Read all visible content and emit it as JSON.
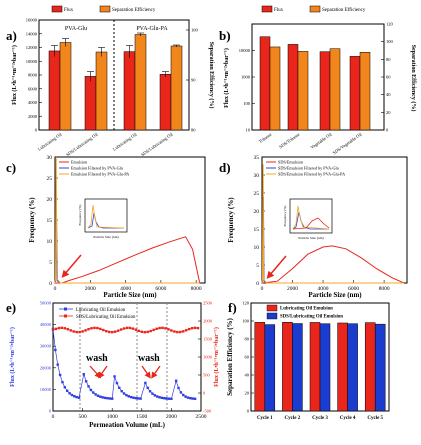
{
  "colors": {
    "flux": "#e8261c",
    "sep": "#f0861c",
    "blue": "#2f3fe0",
    "orange": "#f5a623",
    "pink": "#e53a8a",
    "bar_blue": "#1a3ccf"
  },
  "chart_data": [
    {
      "panel": "a)",
      "type": "bar",
      "legend": [
        "Flux",
        "Separation Efficiency"
      ],
      "groups": [
        "PVA-Glu",
        "PVA-Glu-PA"
      ],
      "categories": [
        "Lubricating Oil",
        "SDS/Lubricating Oil",
        "Lubricating Oil",
        "SDS/Lubricating Oil"
      ],
      "series": [
        {
          "name": "Flux",
          "values": [
            11500,
            7800,
            11400,
            8100
          ],
          "errors": [
            800,
            700,
            900,
            400
          ],
          "axis": "left"
        },
        {
          "name": "Separation Efficiency",
          "values": [
            97.5,
            95.6,
            99.1,
            96.8
          ],
          "errors": [
            0.8,
            0.9,
            0.3,
            0.2
          ],
          "axis": "right"
        }
      ],
      "ylabel": "Flux (L•h⁻¹•m⁻²•bar⁻¹)",
      "y2label": "Separation Efficiency (%)",
      "ylim": [
        0,
        16000
      ],
      "y2lim": [
        80,
        102
      ],
      "yticks": [
        "0",
        "2000",
        "4000",
        "6000",
        "8000",
        "10000",
        "12000",
        "14000",
        "16000"
      ],
      "y2ticks": [
        "80",
        "90",
        "100"
      ]
    },
    {
      "panel": "b)",
      "type": "bar",
      "legend": [
        "Flux",
        "Separation Efficiency"
      ],
      "categories": [
        "Toluene",
        "SDS/Toluene",
        "Vegetable Oil",
        "SDS/Vegetable Oil"
      ],
      "series": [
        {
          "name": "Flux",
          "values": [
            33000,
            17000,
            9000,
            6000
          ],
          "axis": "left"
        },
        {
          "name": "Separation Efficiency",
          "values": [
            94,
            89,
            92,
            88
          ],
          "axis": "right"
        }
      ],
      "ylabel": "Flux (L•h⁻¹•m⁻²•bar⁻¹)",
      "y2label": "Separation Efficiency (%)",
      "yscale": "log",
      "ylim": [
        10,
        100000
      ],
      "y2lim": [
        0,
        120
      ],
      "yticks": [
        "10",
        "100",
        "1000",
        "10000"
      ],
      "y2ticks": [
        "0",
        "20",
        "40",
        "60",
        "80",
        "100",
        "120"
      ]
    },
    {
      "panel": "c)",
      "type": "line",
      "series": [
        {
          "name": "Emulsion",
          "color": "#e8261c"
        },
        {
          "name": "Emulsion Filtered by PVA-Glu",
          "color": "#2f3fe0"
        },
        {
          "name": "Emulsion Filtered by PVA-Glu-PA",
          "color": "#f5a623"
        }
      ],
      "xlabel": "Particle Size (nm)",
      "ylabel": "Frequency (%)",
      "xlim": [
        0,
        8500
      ],
      "ylim": [
        0,
        30
      ],
      "xticks": [
        "0",
        "2000",
        "4000",
        "6000",
        "8000"
      ],
      "yticks": [
        "0",
        "5",
        "10",
        "15",
        "20",
        "25",
        "30"
      ],
      "inset": {
        "xlabel": "Particle Size (nm)",
        "ylabel": "Frequency (%)"
      }
    },
    {
      "panel": "d)",
      "type": "line",
      "series": [
        {
          "name": "SDS/Emulsion",
          "color": "#e8261c"
        },
        {
          "name": "SDS/Emulsion Filtered by PVA-Glu",
          "color": "#2f3fe0"
        },
        {
          "name": "SDS/Emulsion Filtered by PVA-Glu-PA",
          "color": "#f5a623"
        }
      ],
      "xlabel": "Particle Size (nm)",
      "ylabel": "Frequency (%)",
      "xlim": [
        0,
        9500
      ],
      "ylim": [
        0,
        35
      ],
      "xticks": [
        "0",
        "2000",
        "4000",
        "6000",
        "8000"
      ],
      "yticks": [
        "0",
        "5",
        "10",
        "15",
        "20",
        "25",
        "30",
        "35"
      ],
      "inset": {
        "xlabel": "Particle Size (nm)",
        "ylabel": "Frequency (%)"
      }
    },
    {
      "panel": "e)",
      "type": "scatter",
      "series": [
        {
          "name": "Lubricating Oil Emulsion",
          "color": "#2f3fe0",
          "axis": "left"
        },
        {
          "name": "SDS/Lubricating Oil Emulsion",
          "color": "#e8261c",
          "axis": "right"
        }
      ],
      "annotations": [
        "wash",
        "wash"
      ],
      "xlabel": "Permeation Volume (mL)",
      "ylabel": "Flux (L•h⁻¹•m⁻²•bar⁻¹)",
      "y2label": "Flux (L•h⁻¹•m⁻²•bar⁻¹)",
      "xlim": [
        0,
        2500
      ],
      "ylim": [
        0,
        50000
      ],
      "y2lim": [
        -500,
        2500
      ],
      "xticks": [
        "0",
        "500",
        "1000",
        "1500",
        "2000",
        "2500"
      ],
      "yticks": [
        "0",
        "10000",
        "20000",
        "30000",
        "40000",
        "50000"
      ],
      "y2ticks": [
        "-500",
        "0",
        "500",
        "1000",
        "1500",
        "2000",
        "2500"
      ]
    },
    {
      "panel": "f)",
      "type": "bar",
      "legend": [
        "Lubricating Oil Emulsion",
        "SDS/Lubricating Oil Emulsion"
      ],
      "categories": [
        "Cycle 1",
        "Cycle 2",
        "Cycle 3",
        "Cycle 4",
        "Cycle 5"
      ],
      "series": [
        {
          "name": "Lubricating Oil Emulsion",
          "values": [
            98.5,
            98.6,
            98.4,
            97.8,
            98.2
          ]
        },
        {
          "name": "SDS/Lubricating Oil Emulsion",
          "values": [
            96.0,
            97.2,
            97.0,
            97.0,
            96.5
          ]
        }
      ],
      "ylabel": "Separation Efficiency (%)",
      "ylim": [
        0,
        120
      ],
      "yticks": [
        "0",
        "20",
        "40",
        "60",
        "80",
        "100",
        "120"
      ]
    }
  ]
}
